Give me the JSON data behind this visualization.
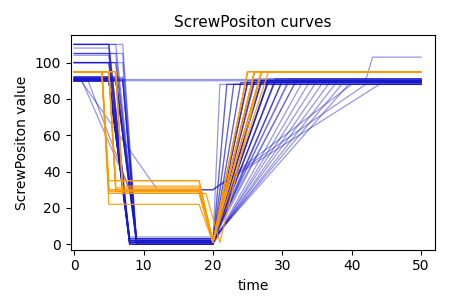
{
  "title": "ScrewPositon curves",
  "xlabel": "time",
  "ylabel": "ScrewPositon value",
  "xlim": [
    -0.5,
    52
  ],
  "ylim": [
    -3,
    115
  ],
  "xticks": [
    0,
    10,
    20,
    30,
    40,
    50
  ],
  "yticks": [
    0,
    20,
    40,
    60,
    80,
    100
  ],
  "blue_color": "#1919cc",
  "orange_color": "#ff9900",
  "blue_alpha": 0.45,
  "orange_alpha": 0.9,
  "lw": 0.9,
  "figsize": [
    4.5,
    3.08
  ],
  "dpi": 100
}
